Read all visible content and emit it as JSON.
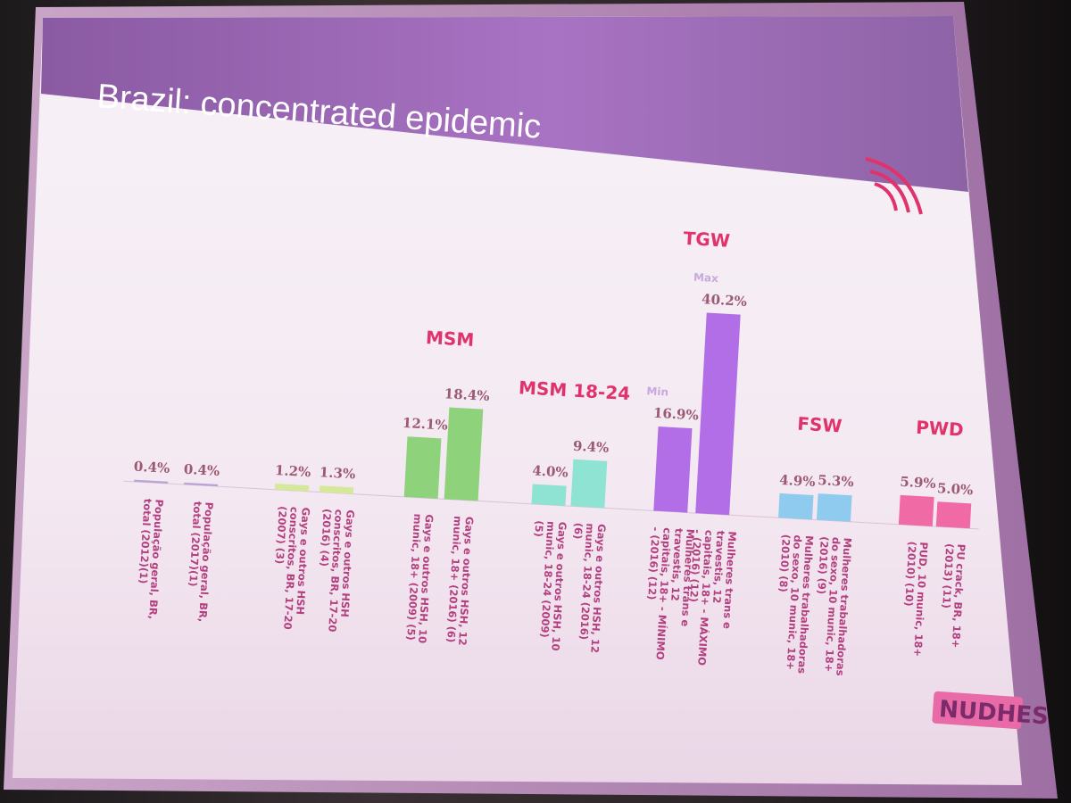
{
  "slide": {
    "title": "Brazil: concentrated epidemic",
    "logo": "NUDHES",
    "colors": {
      "header": "#9a6ab0",
      "background": "#f5eef5",
      "group_label": "#e0336c"
    }
  },
  "chart_data": {
    "type": "bar",
    "title": "",
    "xlabel": "",
    "ylabel": "",
    "ylim": [
      0,
      42
    ],
    "grid": false,
    "categories": [
      "População geral, BR, total (2012)(1)",
      "População geral, BR, total (2017)(1)",
      "Gays e outros HSH conscritos, BR, 17-20 (2007) (3)",
      "Gays e outros HSH conscritos, BR, 17-20 (2016) (4)",
      "Gays e outros HSH, 10 munic, 18+ (2009) (5)",
      "Gays e outros HSH, 12 munic, 18+ (2016) (6)",
      "Gays e outros HSH, 10 munic, 18-24 (2009) (5)",
      "Gays e outros HSH, 12 munic, 18-24 (2016) (6)",
      "Mulheres trans e travestis, 12 capitais, 18+ - MÍNIMO - (2016) (12)",
      "Mulheres trans e travestis, 12 capitais, 18+ - MÁXIMO - (2016) (12)",
      "Mulheres trabalhadoras do sexo, 10 munic, 18+ (2010) (8)",
      "Mulheres trabalhadoras do sexo, 10 munic, 18+ (2016) (9)",
      "PUD, 10 munic, 18+ (2010) (10)",
      "PU crack, BR, 18+ (2013) (11)"
    ],
    "values": [
      0.4,
      0.4,
      1.2,
      1.3,
      12.1,
      18.4,
      4.0,
      9.4,
      16.9,
      40.2,
      4.9,
      5.3,
      5.9,
      5.0
    ],
    "value_labels": [
      "0.4%",
      "0.4%",
      "1.2%",
      "1.3%",
      "12.1%",
      "18.4%",
      "4.0%",
      "9.4%",
      "16.9%",
      "40.2%",
      "4.9%",
      "5.3%",
      "5.9%",
      "5.0%"
    ],
    "bar_colors": [
      "#b9a4d4",
      "#b9a4d4",
      "#d6e89a",
      "#d6e89a",
      "#8fd27c",
      "#8fd27c",
      "#8fe3d3",
      "#8fe3d3",
      "#b26ee6",
      "#b26ee6",
      "#8ecbee",
      "#8ecbee",
      "#f06aa6",
      "#f06aa6"
    ],
    "groups": [
      {
        "label": "MSM",
        "bars": [
          4,
          5
        ],
        "color": "#e0336c"
      },
      {
        "label": "MSM 18-24",
        "bars": [
          6,
          7
        ],
        "color": "#e0336c"
      },
      {
        "label": "TGW",
        "bars": [
          8,
          9
        ],
        "color": "#e0336c"
      },
      {
        "label": "FSW",
        "bars": [
          10,
          11
        ],
        "color": "#e0336c"
      },
      {
        "label": "PWD",
        "bars": [
          12,
          13
        ],
        "color": "#e0336c"
      }
    ],
    "annotations": [
      {
        "bar": 8,
        "text": "Min"
      },
      {
        "bar": 9,
        "text": "Max"
      }
    ]
  }
}
